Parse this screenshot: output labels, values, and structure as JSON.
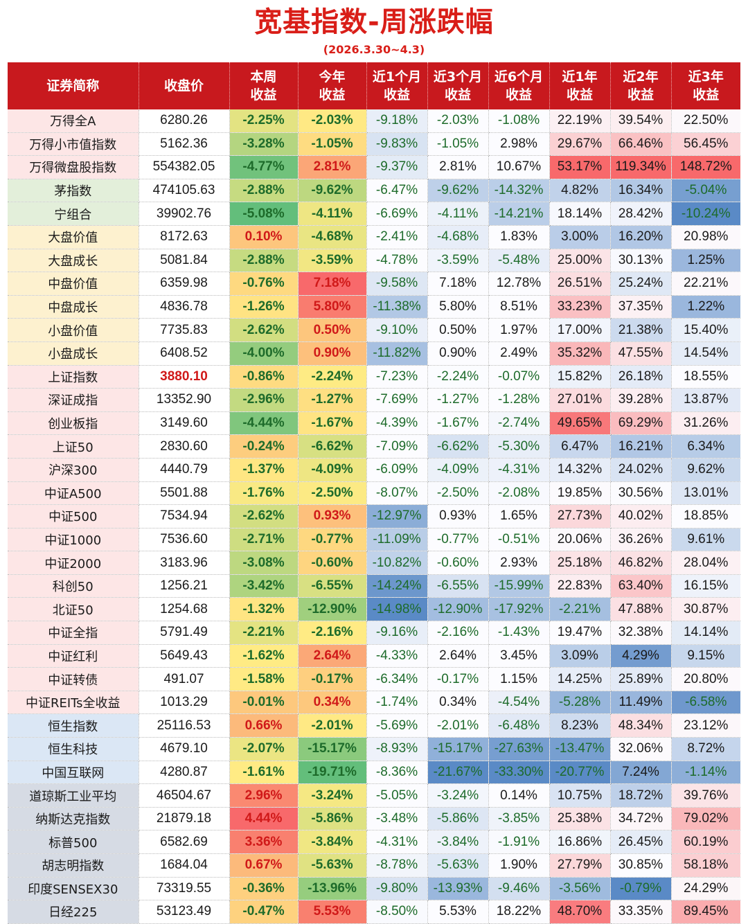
{
  "title": "宽基指数-周涨跌幅",
  "subtitle": "(2026.3.30~4.3)",
  "headers": [
    [
      "证券简称"
    ],
    [
      "收盘价"
    ],
    [
      "本周",
      "收益"
    ],
    [
      "今年",
      "收益"
    ],
    [
      "近1个月",
      "收益"
    ],
    [
      "近3个月",
      "收益"
    ],
    [
      "近6个月",
      "收益"
    ],
    [
      "近1年",
      "收益"
    ],
    [
      "近2年",
      "收益"
    ],
    [
      "近3年",
      "收益"
    ]
  ],
  "group_colors": {
    "wind": "#fde6e6",
    "theme": "#e3efda",
    "style": "#fdf1cf",
    "sector": "#fde6e6",
    "hk": "#dbe7f5",
    "global": "#d6dbe4"
  },
  "rows": [
    {
      "group": "wind",
      "cells": [
        "万得全A",
        "6280.26",
        "-2.25%",
        "-2.03%",
        "-9.18%",
        "-2.03%",
        "-1.08%",
        "22.19%",
        "39.54%",
        "22.50%"
      ]
    },
    {
      "group": "wind",
      "cells": [
        "万得小市值指数",
        "5162.36",
        "-3.28%",
        "-1.05%",
        "-9.83%",
        "-1.05%",
        "2.98%",
        "29.67%",
        "66.46%",
        "56.45%"
      ]
    },
    {
      "group": "wind",
      "cells": [
        "万得微盘股指数",
        "554382.05",
        "-4.77%",
        "2.81%",
        "-9.37%",
        "2.81%",
        "10.67%",
        "53.17%",
        "119.34%",
        "148.72%"
      ]
    },
    {
      "group": "theme",
      "cells": [
        "茅指数",
        "474105.63",
        "-2.88%",
        "-9.62%",
        "-6.47%",
        "-9.62%",
        "-14.32%",
        "4.82%",
        "16.34%",
        "-5.04%"
      ]
    },
    {
      "group": "theme",
      "cells": [
        "宁组合",
        "39902.76",
        "-5.08%",
        "-4.11%",
        "-6.69%",
        "-4.11%",
        "-14.21%",
        "18.14%",
        "28.42%",
        "-10.24%"
      ]
    },
    {
      "group": "style",
      "cells": [
        "大盘价值",
        "8172.63",
        "0.10%",
        "-4.68%",
        "-2.41%",
        "-4.68%",
        "1.83%",
        "3.00%",
        "16.20%",
        "20.98%"
      ]
    },
    {
      "group": "style",
      "cells": [
        "大盘成长",
        "5081.84",
        "-2.88%",
        "-3.59%",
        "-4.78%",
        "-3.59%",
        "-5.48%",
        "25.00%",
        "30.13%",
        "1.25%"
      ]
    },
    {
      "group": "style",
      "cells": [
        "中盘价值",
        "6359.98",
        "-0.76%",
        "7.18%",
        "-9.58%",
        "7.18%",
        "12.78%",
        "26.51%",
        "25.24%",
        "22.21%"
      ]
    },
    {
      "group": "style",
      "cells": [
        "中盘成长",
        "4836.78",
        "-1.26%",
        "5.80%",
        "-11.38%",
        "5.80%",
        "8.51%",
        "33.23%",
        "37.35%",
        "1.22%"
      ]
    },
    {
      "group": "style",
      "cells": [
        "小盘价值",
        "7735.83",
        "-2.62%",
        "0.50%",
        "-9.10%",
        "0.50%",
        "1.97%",
        "17.00%",
        "21.38%",
        "15.40%"
      ]
    },
    {
      "group": "style",
      "cells": [
        "小盘成长",
        "6408.52",
        "-4.00%",
        "0.90%",
        "-11.82%",
        "0.90%",
        "2.49%",
        "35.32%",
        "47.55%",
        "14.54%"
      ]
    },
    {
      "group": "sector",
      "cells": [
        "上证指数",
        "3880.10",
        "-0.86%",
        "-2.24%",
        "-7.23%",
        "-2.24%",
        "-0.07%",
        "15.82%",
        "26.18%",
        "18.55%"
      ],
      "highlight_price": true
    },
    {
      "group": "sector",
      "cells": [
        "深证成指",
        "13352.90",
        "-2.96%",
        "-1.27%",
        "-7.69%",
        "-1.27%",
        "-1.28%",
        "27.01%",
        "39.28%",
        "13.87%"
      ]
    },
    {
      "group": "sector",
      "cells": [
        "创业板指",
        "3149.60",
        "-4.44%",
        "-1.67%",
        "-4.39%",
        "-1.67%",
        "-2.74%",
        "49.65%",
        "69.29%",
        "31.26%"
      ]
    },
    {
      "group": "sector",
      "cells": [
        "上证50",
        "2830.60",
        "-0.24%",
        "-6.62%",
        "-7.09%",
        "-6.62%",
        "-5.30%",
        "6.47%",
        "16.21%",
        "6.34%"
      ]
    },
    {
      "group": "sector",
      "cells": [
        "沪深300",
        "4440.79",
        "-1.37%",
        "-4.09%",
        "-6.09%",
        "-4.09%",
        "-4.31%",
        "14.32%",
        "24.02%",
        "9.62%"
      ]
    },
    {
      "group": "sector",
      "cells": [
        "中证A500",
        "5501.88",
        "-1.76%",
        "-2.50%",
        "-8.07%",
        "-2.50%",
        "-2.08%",
        "19.85%",
        "30.56%",
        "13.01%"
      ]
    },
    {
      "group": "sector",
      "cells": [
        "中证500",
        "7534.94",
        "-2.62%",
        "0.93%",
        "-12.97%",
        "0.93%",
        "1.65%",
        "27.73%",
        "40.02%",
        "18.85%"
      ]
    },
    {
      "group": "sector",
      "cells": [
        "中证1000",
        "7536.60",
        "-2.71%",
        "-0.77%",
        "-11.09%",
        "-0.77%",
        "-0.51%",
        "20.06%",
        "36.26%",
        "9.61%"
      ]
    },
    {
      "group": "sector",
      "cells": [
        "中证2000",
        "3183.96",
        "-3.08%",
        "-0.60%",
        "-10.82%",
        "-0.60%",
        "2.93%",
        "25.18%",
        "46.82%",
        "28.04%"
      ]
    },
    {
      "group": "sector",
      "cells": [
        "科创50",
        "1256.21",
        "-3.42%",
        "-6.55%",
        "-14.24%",
        "-6.55%",
        "-15.99%",
        "22.83%",
        "63.40%",
        "16.15%"
      ]
    },
    {
      "group": "sector",
      "cells": [
        "北证50",
        "1254.68",
        "-1.32%",
        "-12.90%",
        "-14.98%",
        "-12.90%",
        "-17.92%",
        "-2.21%",
        "47.88%",
        "30.87%"
      ]
    },
    {
      "group": "sector",
      "cells": [
        "中证全指",
        "5791.49",
        "-2.21%",
        "-2.16%",
        "-9.16%",
        "-2.16%",
        "-1.43%",
        "19.47%",
        "32.38%",
        "14.14%"
      ]
    },
    {
      "group": "sector",
      "cells": [
        "中证红利",
        "5649.43",
        "-1.62%",
        "2.64%",
        "-4.33%",
        "2.64%",
        "3.45%",
        "3.09%",
        "4.29%",
        "9.15%"
      ]
    },
    {
      "group": "sector",
      "cells": [
        "中证转债",
        "491.07",
        "-1.58%",
        "-0.17%",
        "-6.34%",
        "-0.17%",
        "1.15%",
        "14.25%",
        "25.89%",
        "20.80%"
      ]
    },
    {
      "group": "sector",
      "cells": [
        "中证REITs全收益",
        "1013.29",
        "-0.01%",
        "0.34%",
        "-1.74%",
        "0.34%",
        "-4.54%",
        "-5.28%",
        "11.49%",
        "-6.58%"
      ]
    },
    {
      "group": "hk",
      "cells": [
        "恒生指数",
        "25116.53",
        "0.66%",
        "-2.01%",
        "-5.69%",
        "-2.01%",
        "-6.48%",
        "8.23%",
        "48.34%",
        "23.12%"
      ]
    },
    {
      "group": "hk",
      "cells": [
        "恒生科技",
        "4679.10",
        "-2.07%",
        "-15.17%",
        "-8.93%",
        "-15.17%",
        "-27.63%",
        "-13.47%",
        "32.06%",
        "8.72%"
      ]
    },
    {
      "group": "hk",
      "cells": [
        "中国互联网",
        "4280.87",
        "-1.61%",
        "-19.71%",
        "-8.36%",
        "-21.67%",
        "-33.30%",
        "-20.77%",
        "7.24%",
        "-1.14%"
      ]
    },
    {
      "group": "global",
      "cells": [
        "道琼斯工业平均",
        "46504.67",
        "2.96%",
        "-3.24%",
        "-5.05%",
        "-3.24%",
        "0.14%",
        "10.75%",
        "18.72%",
        "39.76%"
      ]
    },
    {
      "group": "global",
      "cells": [
        "纳斯达克指数",
        "21879.18",
        "4.44%",
        "-5.86%",
        "-3.48%",
        "-5.86%",
        "-3.85%",
        "25.38%",
        "34.72%",
        "79.02%"
      ]
    },
    {
      "group": "global",
      "cells": [
        "标普500",
        "6582.69",
        "3.36%",
        "-3.84%",
        "-4.31%",
        "-3.84%",
        "-1.91%",
        "16.86%",
        "26.45%",
        "60.19%"
      ]
    },
    {
      "group": "global",
      "cells": [
        "胡志明指数",
        "1684.04",
        "0.67%",
        "-5.63%",
        "-8.78%",
        "-5.63%",
        "1.90%",
        "27.79%",
        "30.85%",
        "58.18%"
      ]
    },
    {
      "group": "global",
      "cells": [
        "印度SENSEX30",
        "73319.55",
        "-0.36%",
        "-13.96%",
        "-9.80%",
        "-13.93%",
        "-9.46%",
        "-3.56%",
        "-0.79%",
        "24.29%"
      ]
    },
    {
      "group": "global",
      "cells": [
        "日经225",
        "53123.49",
        "-0.47%",
        "5.53%",
        "-8.50%",
        "5.53%",
        "18.22%",
        "48.70%",
        "33.35%",
        "89.45%"
      ]
    }
  ]
}
